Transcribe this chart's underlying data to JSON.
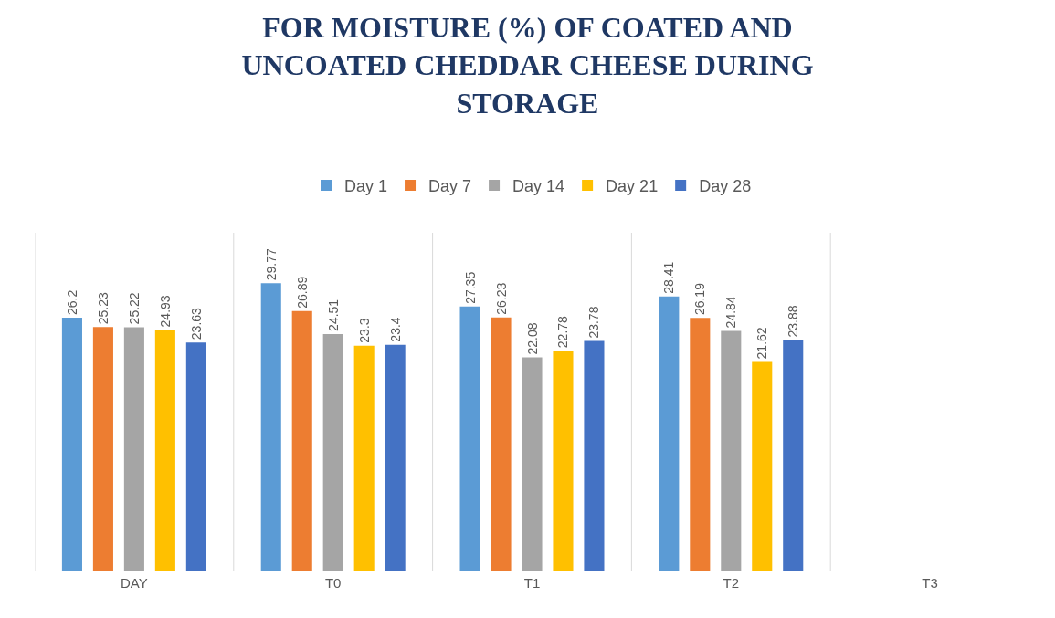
{
  "chart_data": {
    "type": "bar",
    "title": "FOR MOISTURE (%) OF COATED AND UNCOATED CHEDDAR CHEESE DURING STORAGE",
    "categories": [
      "DAY",
      "T0",
      "T1",
      "T2",
      "T3"
    ],
    "series": [
      {
        "name": "Day 1",
        "color": "#5b9bd5",
        "values": [
          26.2,
          29.77,
          27.35,
          28.41,
          null
        ]
      },
      {
        "name": "Day 7",
        "color": "#ed7d31",
        "values": [
          25.23,
          26.89,
          26.23,
          26.19,
          null
        ]
      },
      {
        "name": "Day 14",
        "color": "#a5a5a5",
        "values": [
          25.22,
          24.51,
          22.08,
          24.84,
          null
        ]
      },
      {
        "name": "Day 21",
        "color": "#ffc000",
        "values": [
          24.93,
          23.3,
          22.78,
          21.62,
          null
        ]
      },
      {
        "name": "Day 28",
        "color": "#4472c4",
        "values": [
          23.63,
          23.4,
          23.78,
          23.88,
          null
        ]
      }
    ],
    "ylim": [
      0,
      35
    ],
    "tick_labels": "x",
    "grid": "x",
    "legend": "top",
    "data_labels": true
  }
}
